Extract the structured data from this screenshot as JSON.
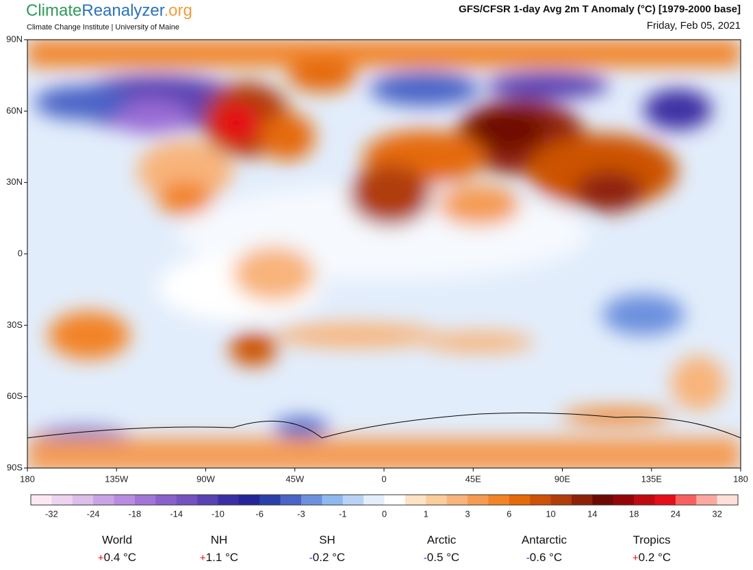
{
  "header": {
    "logo": [
      "Climate",
      "Reanalyzer",
      ".org"
    ],
    "subtitle": "Climate Change Institute | University of Maine",
    "title": "GFS/CFSR 1-day Avg 2m T Anomaly (°C) [1979-2000 base]",
    "date": "Friday, Feb 05, 2021"
  },
  "map": {
    "lat_labels": [
      "90N",
      "60N",
      "30N",
      "0",
      "30S",
      "60S",
      "90S"
    ],
    "lon_labels": [
      "180",
      "135W",
      "90W",
      "45W",
      "0",
      "45E",
      "90E",
      "135E",
      "180"
    ]
  },
  "colorbar": {
    "labels": [
      -32,
      -24,
      -18,
      -14,
      -10,
      -6,
      -3,
      -1,
      0,
      1,
      3,
      6,
      10,
      14,
      18,
      24,
      32
    ],
    "colors": [
      "#fde8f2",
      "#ecd4ef",
      "#dcbeea",
      "#c9a4e4",
      "#b88ce0",
      "#a274d8",
      "#8a60cc",
      "#7452c0",
      "#5a42b2",
      "#3c2fa3",
      "#232598",
      "#2a3fa8",
      "#4a63c6",
      "#6c90de",
      "#8fb8ef",
      "#b8d3f5",
      "#e3eefb",
      "#ffffff",
      "#fde2c6",
      "#fbcc9c",
      "#f8b47a",
      "#f59b52",
      "#f28326",
      "#e56a0a",
      "#cc5206",
      "#b03c0a",
      "#8e2208",
      "#6e0a05",
      "#940508",
      "#c00a10",
      "#e60e18",
      "#f86060",
      "#fca8a0",
      "#fde0d8"
    ]
  },
  "regions": [
    {
      "name": "World",
      "sign": "+",
      "value": "0.4 °C"
    },
    {
      "name": "NH",
      "sign": "+",
      "value": "1.1 °C"
    },
    {
      "name": "SH",
      "sign": "-",
      "value": "0.2 °C"
    },
    {
      "name": "Arctic",
      "sign": "-",
      "value": "0.5 °C"
    },
    {
      "name": "Antarctic",
      "sign": "-",
      "value": "0.6 °C"
    },
    {
      "name": "Tropics",
      "sign": "+",
      "value": "0.2 °C"
    }
  ]
}
